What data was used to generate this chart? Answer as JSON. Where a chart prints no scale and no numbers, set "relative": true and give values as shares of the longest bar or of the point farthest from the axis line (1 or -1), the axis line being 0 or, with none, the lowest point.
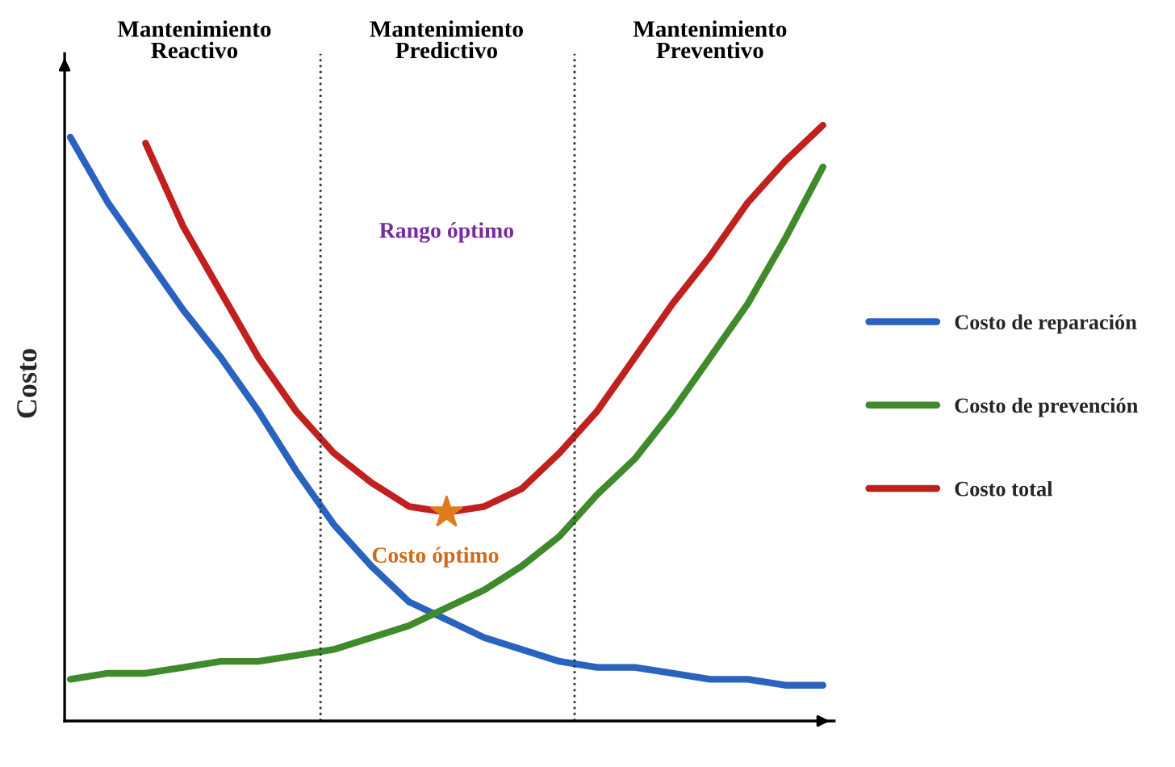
{
  "chart_data": {
    "type": "line",
    "relative": true,
    "ylabel": "Costo",
    "categories": [
      null,
      null,
      null,
      null,
      null,
      null,
      null,
      null,
      null,
      null,
      null,
      null,
      null,
      null,
      null,
      null,
      null,
      null,
      null,
      null,
      null
    ],
    "series": [
      {
        "name": "Costo de reparación",
        "color": "#2a62c0",
        "values": [
          0.98,
          0.87,
          0.78,
          0.69,
          0.61,
          0.52,
          0.42,
          0.33,
          0.26,
          0.2,
          0.17,
          0.14,
          0.12,
          0.1,
          0.09,
          0.09,
          0.08,
          0.07,
          0.07,
          0.06,
          0.06
        ]
      },
      {
        "name": "Costo de prevención",
        "color": "#3f8a2a",
        "values": [
          0.07,
          0.08,
          0.08,
          0.09,
          0.1,
          0.1,
          0.11,
          0.12,
          0.14,
          0.16,
          0.19,
          0.22,
          0.26,
          0.31,
          0.38,
          0.44,
          0.52,
          0.61,
          0.7,
          0.81,
          0.93
        ]
      },
      {
        "name": "Costo total",
        "color": "#c0201e",
        "values": [
          null,
          null,
          0.97,
          0.83,
          0.72,
          0.61,
          0.52,
          0.45,
          0.4,
          0.36,
          0.35,
          0.36,
          0.39,
          0.45,
          0.52,
          0.61,
          0.7,
          0.78,
          0.87,
          0.94,
          1.0
        ]
      }
    ],
    "annotations": [
      "Mantenimiento\nReactivo",
      "Mantenimiento\nPredictivo",
      "Mantenimiento\nPreventivo",
      "Rango óptimo",
      "Costo óptimo"
    ],
    "legend": "right"
  }
}
